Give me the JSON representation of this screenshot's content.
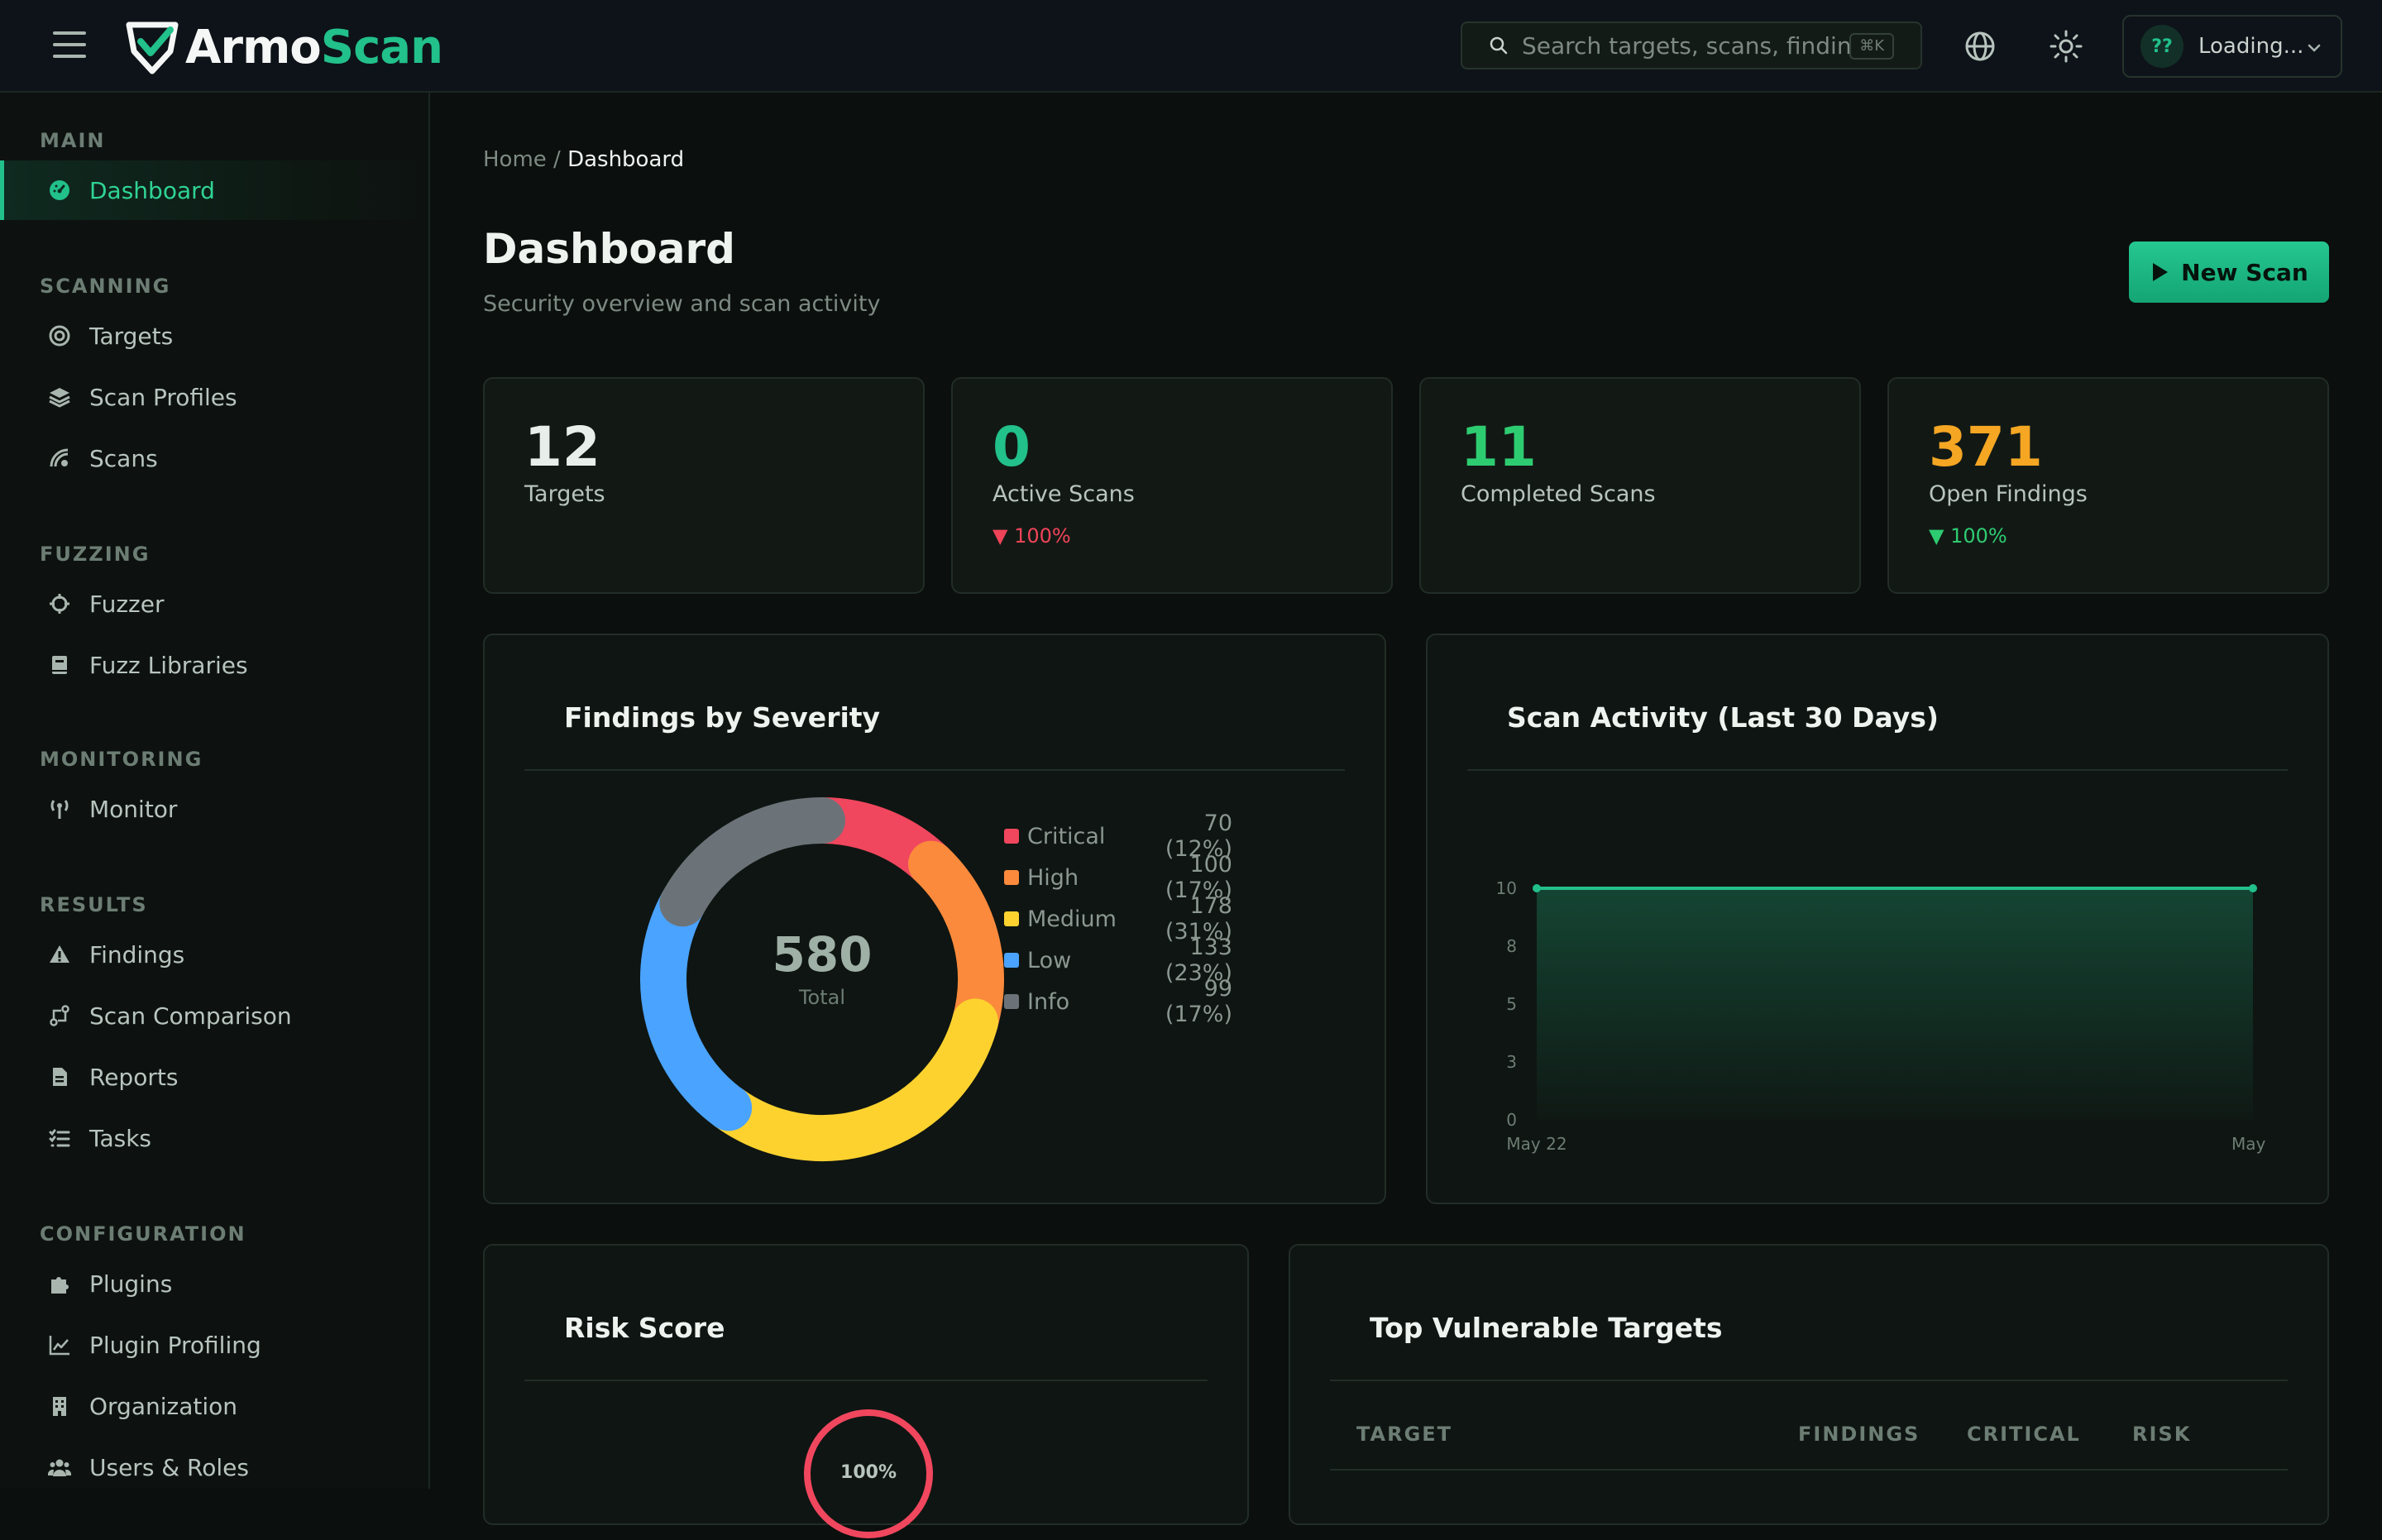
{
  "app": {
    "logo_part1": "Armo",
    "logo_part2": "Scan"
  },
  "topbar": {
    "search_placeholder": "Search targets, scans, findings",
    "search_shortcut": "⌘K",
    "user_initials": "??",
    "user_name": "Loading..."
  },
  "sidebar": {
    "sections": [
      {
        "title": "MAIN",
        "items": [
          {
            "label": "Dashboard",
            "icon": "gauge-icon",
            "active": true
          }
        ]
      },
      {
        "title": "SCANNING",
        "items": [
          {
            "label": "Targets",
            "icon": "target-icon"
          },
          {
            "label": "Scan Profiles",
            "icon": "layers-icon"
          },
          {
            "label": "Scans",
            "icon": "radar-icon"
          }
        ]
      },
      {
        "title": "FUZZING",
        "items": [
          {
            "label": "Fuzzer",
            "icon": "crosshair-icon"
          },
          {
            "label": "Fuzz Libraries",
            "icon": "book-icon"
          }
        ]
      },
      {
        "title": "MONITORING",
        "items": [
          {
            "label": "Monitor",
            "icon": "antenna-icon"
          }
        ]
      },
      {
        "title": "RESULTS",
        "items": [
          {
            "label": "Findings",
            "icon": "warning-icon"
          },
          {
            "label": "Scan Comparison",
            "icon": "compare-icon"
          },
          {
            "label": "Reports",
            "icon": "file-icon"
          },
          {
            "label": "Tasks",
            "icon": "checklist-icon"
          }
        ]
      },
      {
        "title": "CONFIGURATION",
        "items": [
          {
            "label": "Plugins",
            "icon": "puzzle-icon"
          },
          {
            "label": "Plugin Profiling",
            "icon": "line-chart-icon"
          },
          {
            "label": "Organization",
            "icon": "building-icon"
          },
          {
            "label": "Users & Roles",
            "icon": "users-icon"
          }
        ]
      }
    ]
  },
  "breadcrumb": {
    "home": "Home",
    "sep": "/",
    "current": "Dashboard"
  },
  "page": {
    "title": "Dashboard",
    "subtitle": "Security overview and scan activity",
    "new_scan_label": "New Scan"
  },
  "stats": [
    {
      "value": "12",
      "label": "Targets",
      "trend": "",
      "color": "#e8efeb"
    },
    {
      "value": "0",
      "label": "Active Scans",
      "trend": "▼ 100%",
      "trend_color": "#ef4458",
      "color": "#22c08a"
    },
    {
      "value": "11",
      "label": "Completed Scans",
      "trend": "",
      "color": "#2ecc71"
    },
    {
      "value": "371",
      "label": "Open Findings",
      "trend": "▼ 100%",
      "trend_color": "#2ecc71",
      "color": "#f5a623"
    }
  ],
  "findings_card": {
    "title": "Findings by Severity",
    "total": "580",
    "total_label": "Total"
  },
  "activity_card": {
    "title": "Scan Activity (Last 30 Days)"
  },
  "risk_card": {
    "title": "Risk Score",
    "value": "100%"
  },
  "targets_card": {
    "title": "Top Vulnerable Targets",
    "columns": [
      "TARGET",
      "FINDINGS",
      "CRITICAL",
      "RISK"
    ]
  },
  "chart_data": [
    {
      "type": "pie",
      "title": "Findings by Severity",
      "categories": [
        "Critical",
        "High",
        "Medium",
        "Low",
        "Info"
      ],
      "values": [
        70,
        100,
        178,
        133,
        99
      ],
      "percent_labels": [
        "70 (12%)",
        "100 (17%)",
        "178 (31%)",
        "133 (23%)",
        "99 (17%)"
      ],
      "colors": [
        "#f0475e",
        "#fb8a3c",
        "#fdd22f",
        "#4aa3ff",
        "#6c7378"
      ]
    },
    {
      "type": "area",
      "title": "Scan Activity (Last 30 Days)",
      "y_ticks": [
        "10",
        "8",
        "5",
        "3",
        "0"
      ],
      "ylim": [
        0,
        10
      ],
      "x_ticks": [
        "May 22",
        "May"
      ],
      "series": [
        {
          "values": [
            10,
            10
          ]
        }
      ],
      "color": "#22c08a",
      "grid": false
    }
  ],
  "colors": {
    "accent": "#22c08a",
    "bg": "#0b0f0d",
    "card": "#0f1512",
    "danger": "#ef4458"
  }
}
